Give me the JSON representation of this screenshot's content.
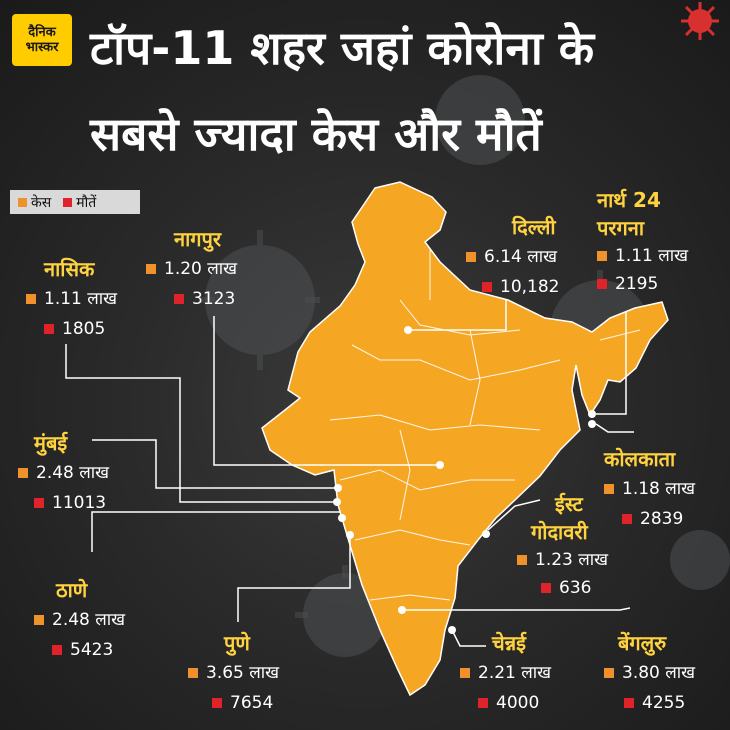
{
  "brand": {
    "line1": "दैनिक",
    "line2": "भास्कर"
  },
  "title": {
    "line1": "टॉप-11 शहर जहां कोरोना के",
    "line2": "सबसे ज्यादा केस और मौतें"
  },
  "legend": {
    "cases": "केस",
    "deaths": "मौतें",
    "cases_color": "#f0922b",
    "deaths_color": "#e0232b"
  },
  "map_color": "#f5a623",
  "cities": [
    {
      "id": "nashik",
      "name": "नासिक",
      "cases": "1.11 लाख",
      "deaths": "1805"
    },
    {
      "id": "nagpur",
      "name": "नागपुर",
      "cases": "1.20 लाख",
      "deaths": "3123"
    },
    {
      "id": "delhi",
      "name": "दिल्ली",
      "cases": "6.14 लाख",
      "deaths": "10,182"
    },
    {
      "id": "north24",
      "name": "नार्थ 24",
      "name2": "परगना",
      "cases": "1.11 लाख",
      "deaths": "2195"
    },
    {
      "id": "mumbai",
      "name": "मुंबई",
      "cases": "2.48 लाख",
      "deaths": "11013"
    },
    {
      "id": "kolkata",
      "name": "कोलकाता",
      "cases": "1.18 लाख",
      "deaths": "2839"
    },
    {
      "id": "eastgodavari",
      "name": "ईस्ट",
      "name2": "गोदावरी",
      "cases": "1.23 लाख",
      "deaths": "636"
    },
    {
      "id": "thane",
      "name": "ठाणे",
      "cases": "2.48 लाख",
      "deaths": "5423"
    },
    {
      "id": "pune",
      "name": "पुणे",
      "cases": "3.65 लाख",
      "deaths": "7654"
    },
    {
      "id": "chennai",
      "name": "चेन्नई",
      "cases": "2.21 लाख",
      "deaths": "4000"
    },
    {
      "id": "bengaluru",
      "name": "बेंगलुरु",
      "cases": "3.80 लाख",
      "deaths": "4255"
    }
  ]
}
